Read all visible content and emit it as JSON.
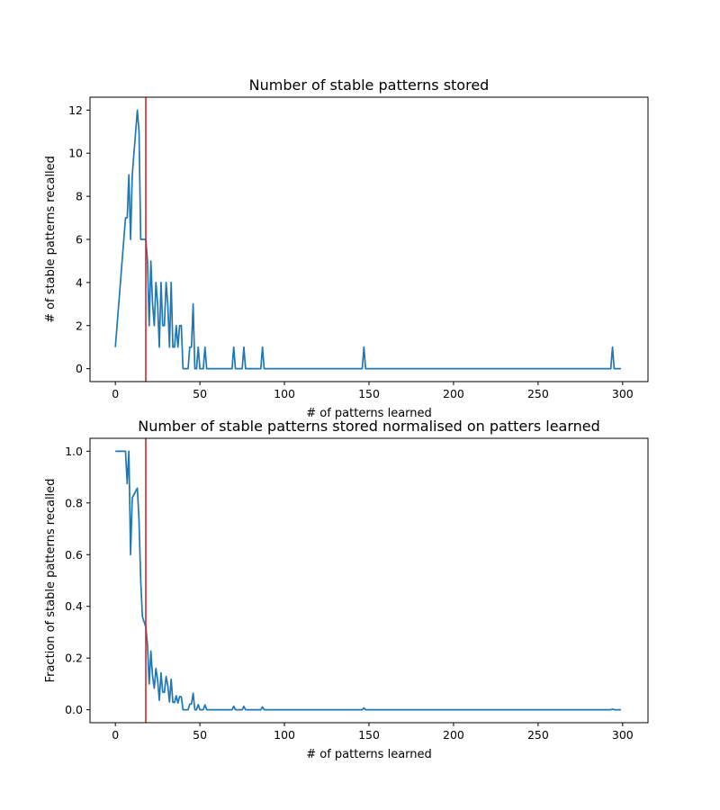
{
  "chart_data": [
    {
      "type": "line",
      "title": "Number of stable patterns stored",
      "xlabel": "# of patterns learned",
      "ylabel": "# of stable patterns recalled",
      "xlim": [
        -15,
        315
      ],
      "ylim": [
        -0.6,
        12.6
      ],
      "xticks": [
        0,
        50,
        100,
        150,
        200,
        250,
        300
      ],
      "yticks": [
        0,
        2,
        4,
        6,
        8,
        10,
        12
      ],
      "grid": false,
      "vline": {
        "x": 18,
        "color": "#d62728"
      },
      "series": [
        {
          "color": "#1f77b4",
          "points": [
            [
              0,
              1
            ],
            [
              6,
              7
            ],
            [
              7,
              7
            ],
            [
              8,
              9
            ],
            [
              9,
              6
            ],
            [
              10,
              9
            ],
            [
              13,
              12
            ],
            [
              14,
              11
            ],
            [
              15,
              6
            ],
            [
              17,
              6
            ],
            [
              18,
              6
            ],
            [
              19,
              5
            ],
            [
              20,
              2
            ],
            [
              21,
              5
            ],
            [
              22,
              3
            ],
            [
              23,
              2
            ],
            [
              24,
              4
            ],
            [
              25,
              3
            ],
            [
              26,
              1
            ],
            [
              27,
              4
            ],
            [
              28,
              2
            ],
            [
              29,
              2
            ],
            [
              30,
              4
            ],
            [
              31,
              3
            ],
            [
              32,
              1
            ],
            [
              33,
              4
            ],
            [
              34,
              1
            ],
            [
              35,
              1
            ],
            [
              36,
              2
            ],
            [
              37,
              1
            ],
            [
              38,
              2
            ],
            [
              39,
              2
            ],
            [
              40,
              0
            ],
            [
              43,
              0
            ],
            [
              44,
              1
            ],
            [
              45,
              1
            ],
            [
              46,
              3
            ],
            [
              47,
              0
            ],
            [
              48,
              0
            ],
            [
              49,
              1
            ],
            [
              50,
              0
            ],
            [
              52,
              0
            ],
            [
              53,
              1
            ],
            [
              54,
              0
            ],
            [
              69,
              0
            ],
            [
              70,
              1
            ],
            [
              71,
              0
            ],
            [
              75,
              0
            ],
            [
              76,
              1
            ],
            [
              77,
              0
            ],
            [
              86,
              0
            ],
            [
              87,
              1
            ],
            [
              88,
              0
            ],
            [
              146,
              0
            ],
            [
              147,
              1
            ],
            [
              148,
              0
            ],
            [
              293,
              0
            ],
            [
              294,
              1
            ],
            [
              295,
              0
            ],
            [
              299,
              0
            ]
          ]
        }
      ]
    },
    {
      "type": "line",
      "title": "Number of stable patterns stored normalised on patters learned",
      "xlabel": "# of patterns learned",
      "ylabel": "Fraction of stable patterns recalled",
      "xlim": [
        -15,
        315
      ],
      "ylim": [
        -0.05,
        1.05
      ],
      "xticks": [
        0,
        50,
        100,
        150,
        200,
        250,
        300
      ],
      "yticks": [
        0.0,
        0.2,
        0.4,
        0.6,
        0.8,
        1.0
      ],
      "grid": false,
      "vline": {
        "x": 18,
        "color": "#d62728"
      },
      "series": [
        {
          "color": "#1f77b4",
          "points": [
            [
              0,
              1.0
            ],
            [
              6,
              1.0
            ],
            [
              7,
              0.875
            ],
            [
              8,
              1.0
            ],
            [
              9,
              0.6
            ],
            [
              10,
              0.82
            ],
            [
              13,
              0.857
            ],
            [
              14,
              0.733
            ],
            [
              15,
              0.5
            ],
            [
              16,
              0.36
            ],
            [
              18,
              0.32
            ],
            [
              19,
              0.25
            ],
            [
              20,
              0.1
            ],
            [
              21,
              0.227
            ],
            [
              22,
              0.13
            ],
            [
              23,
              0.083
            ],
            [
              24,
              0.16
            ],
            [
              25,
              0.115
            ],
            [
              26,
              0.037
            ],
            [
              27,
              0.143
            ],
            [
              28,
              0.069
            ],
            [
              29,
              0.067
            ],
            [
              30,
              0.129
            ],
            [
              31,
              0.094
            ],
            [
              32,
              0.03
            ],
            [
              33,
              0.118
            ],
            [
              34,
              0.029
            ],
            [
              35,
              0.028
            ],
            [
              36,
              0.054
            ],
            [
              37,
              0.026
            ],
            [
              38,
              0.051
            ],
            [
              39,
              0.05
            ],
            [
              40,
              0.0
            ],
            [
              43,
              0.0
            ],
            [
              44,
              0.022
            ],
            [
              45,
              0.022
            ],
            [
              46,
              0.064
            ],
            [
              47,
              0.0
            ],
            [
              48,
              0.0
            ],
            [
              49,
              0.02
            ],
            [
              50,
              0.0
            ],
            [
              52,
              0.0
            ],
            [
              53,
              0.019
            ],
            [
              54,
              0.0
            ],
            [
              69,
              0.0
            ],
            [
              70,
              0.014
            ],
            [
              71,
              0.0
            ],
            [
              75,
              0.0
            ],
            [
              76,
              0.013
            ],
            [
              77,
              0.0
            ],
            [
              86,
              0.0
            ],
            [
              87,
              0.011
            ],
            [
              88,
              0.0
            ],
            [
              146,
              0.0
            ],
            [
              147,
              0.007
            ],
            [
              148,
              0.0
            ],
            [
              293,
              0.0
            ],
            [
              294,
              0.003
            ],
            [
              295,
              0.0
            ],
            [
              299,
              0.0
            ]
          ]
        }
      ]
    }
  ]
}
